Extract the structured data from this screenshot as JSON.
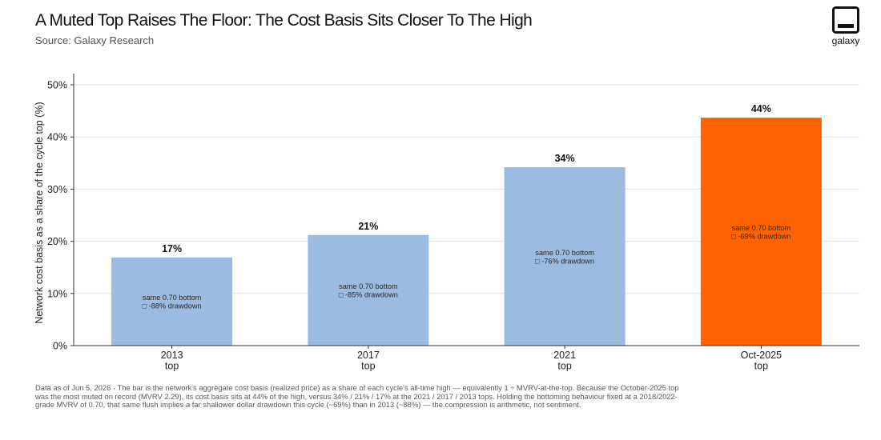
{
  "header": {
    "title": "A Muted Top Raises The Floor: The Cost Basis Sits Closer To The High",
    "subtitle": "Source: Galaxy Research"
  },
  "brand": {
    "logo_text": "galaxy",
    "logo_icon": "galaxy-logo-icon"
  },
  "colors": {
    "bar_default": "#9bbbe1",
    "bar_highlight": "#ff6200",
    "grid": "#e3e3e3",
    "axis": "#333333"
  },
  "chart_data": {
    "type": "bar",
    "categories": [
      "2013\ntop",
      "2017\ntop",
      "2021\ntop",
      "Oct-2025\ntop"
    ],
    "values": [
      17,
      21,
      34,
      44
    ],
    "plot_values": [
      16.9,
      21.2,
      34.2,
      43.7
    ],
    "value_labels": [
      "17%",
      "21%",
      "34%",
      "44%"
    ],
    "bar_annotations": [
      [
        "same 0.70 bottom",
        "□ -88% drawdown"
      ],
      [
        "same 0.70 bottom",
        "□ -85% drawdown"
      ],
      [
        "same 0.70 bottom",
        "□ -76% drawdown"
      ],
      [
        "same 0.70 bottom",
        "□ -69% drawdown"
      ]
    ],
    "highlight_index": 3,
    "ylabel": "Network cost basis as a share of the cycle top (%)",
    "xlabel": "",
    "ylim": [
      0,
      50
    ],
    "yticks": [
      0,
      10,
      20,
      30,
      40,
      50
    ],
    "ytick_labels": [
      "0%",
      "10%",
      "20%",
      "30%",
      "40%",
      "50%"
    ],
    "grid": true,
    "legend": "none"
  },
  "footnote": "Data as of Jun 5, 2026 · The bar is the network's aggregate cost basis (realized price) as a share of each cycle's all-time high — equivalently 1 ÷ MVRV-at-the-top. Because the October-2025 top was the most muted on record (MVRV 2.29), its cost basis sits at 44% of the high, versus 34% / 21% / 17% at the 2021 / 2017 / 2013 tops. Holding the bottoming behaviour fixed at a 2018/2022-grade MVRV of 0.70, that same flush implies a far shallower dollar drawdown this cycle (~69%) than in 2013 (~88%) — the compression is arithmetic, not sentiment."
}
